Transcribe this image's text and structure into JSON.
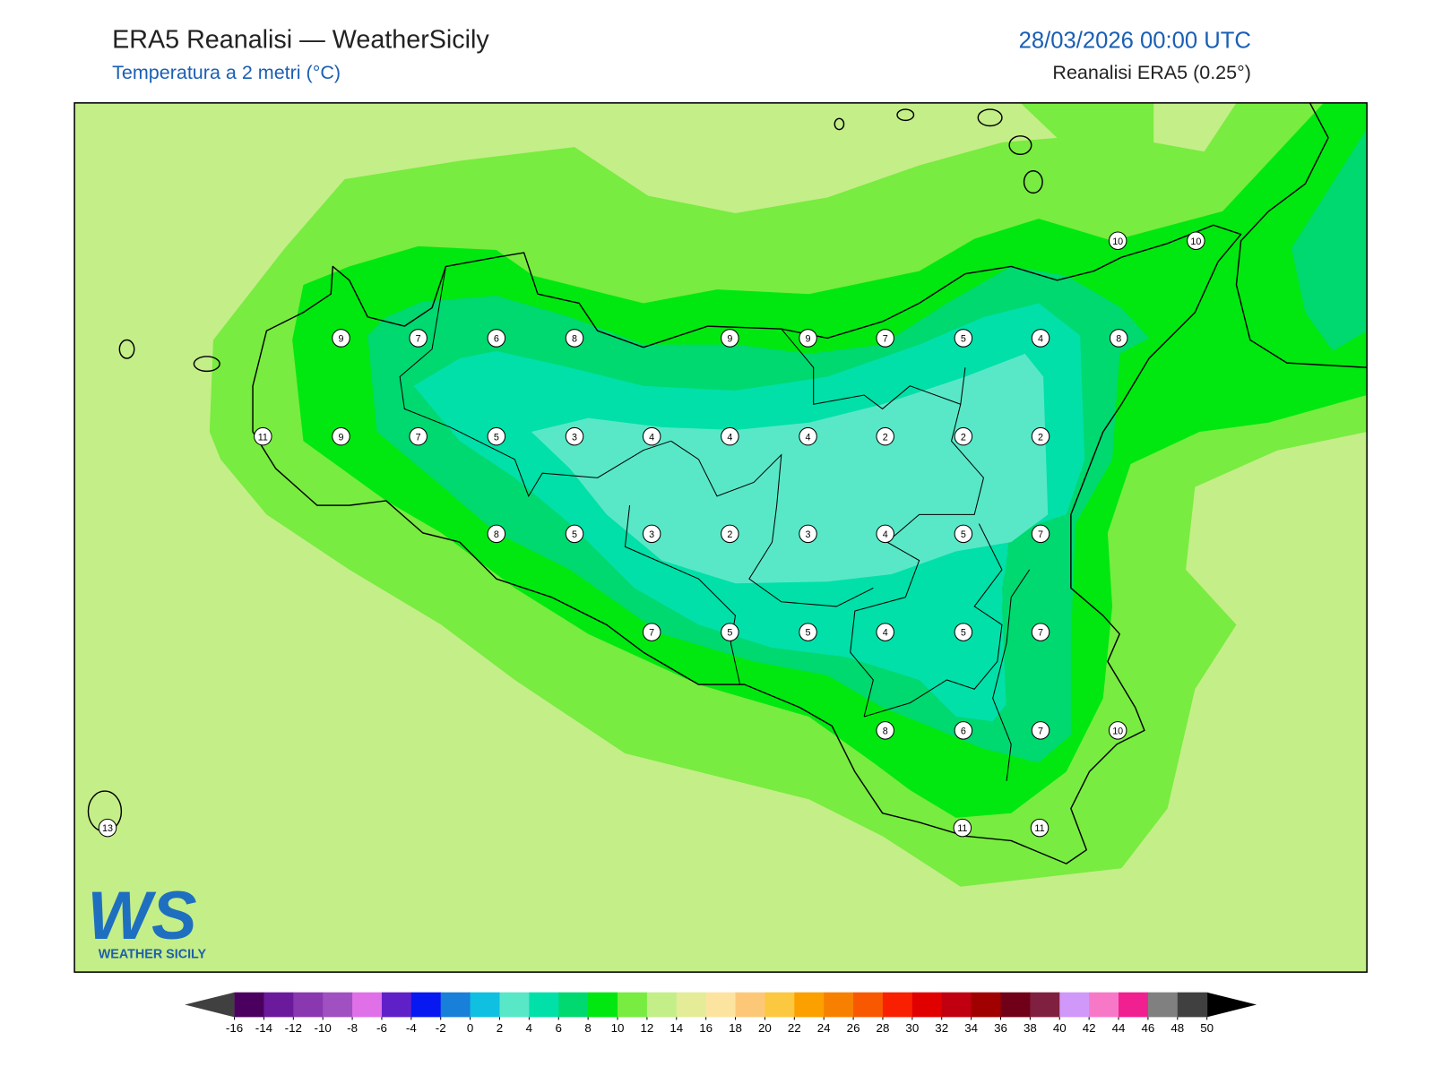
{
  "header": {
    "title": "ERA5 Reanalisi — WeatherSicily",
    "subtitle": "Temperatura a 2 metri (°C)",
    "datetime": "28/03/2026 00:00 UTC",
    "source": "Reanalisi ERA5 (0.25°)"
  },
  "logo": {
    "mark": "WS",
    "text": "WEATHER SICILY"
  },
  "stations": {
    "values": [
      10,
      10,
      9,
      7,
      6,
      8,
      9,
      9,
      7,
      5,
      4,
      8,
      11,
      9,
      7,
      5,
      3,
      4,
      4,
      4,
      2,
      2,
      2,
      8,
      5,
      3,
      2,
      3,
      4,
      5,
      7,
      7,
      5,
      5,
      4,
      5,
      7,
      8,
      6,
      7,
      10,
      13,
      11,
      11
    ]
  },
  "colorbar": {
    "ticks": [
      -16,
      -14,
      -12,
      -10,
      -8,
      -6,
      -4,
      -2,
      0,
      2,
      4,
      6,
      8,
      10,
      12,
      14,
      16,
      18,
      20,
      22,
      24,
      26,
      28,
      30,
      32,
      34,
      36,
      38,
      40,
      42,
      44,
      46,
      48,
      50
    ],
    "colors": [
      "#4b0060",
      "#6c1a9c",
      "#8a38b0",
      "#a050c0",
      "#e070e8",
      "#6020c8",
      "#0818f0",
      "#1880d8",
      "#10c0e0",
      "#58e8c8",
      "#00e0a8",
      "#00d870",
      "#00e810",
      "#78ec40",
      "#c4ee88",
      "#e4ec98",
      "#fce4a0",
      "#fcc878",
      "#fcc840",
      "#fca000",
      "#f88000",
      "#f85800",
      "#f82000",
      "#e00000",
      "#c00010",
      "#a00000",
      "#700018",
      "#802040",
      "#d098f8",
      "#f878c8",
      "#f02090",
      "#808080",
      "#404040"
    ],
    "under_color": "#404040",
    "over_color": "#000000"
  }
}
